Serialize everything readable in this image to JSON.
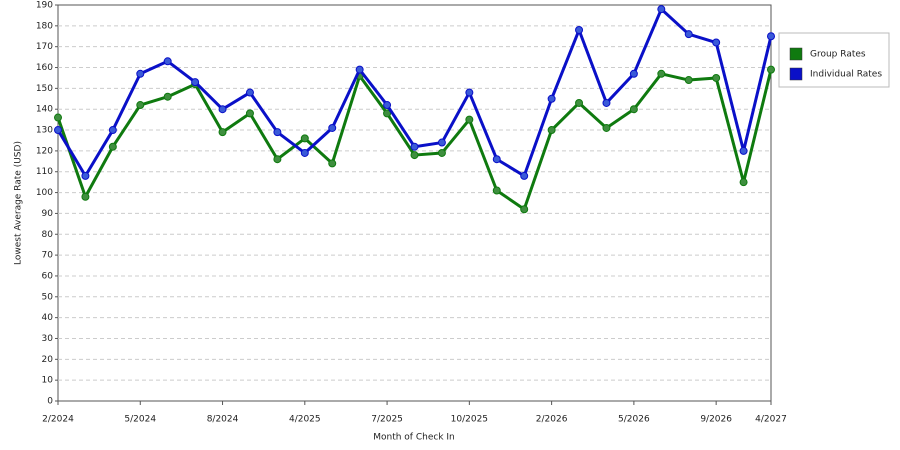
{
  "chart_data": {
    "type": "line",
    "x_label": "Month of Check In",
    "y_label": "Lowest Average Rate (USD)",
    "categories": [
      "2/2024",
      null,
      null,
      "5/2024",
      null,
      null,
      "8/2024",
      null,
      null,
      "4/2025",
      null,
      null,
      "7/2025",
      null,
      null,
      "10/2025",
      null,
      null,
      "2/2026",
      null,
      null,
      "5/2026",
      null,
      null,
      "9/2026",
      null,
      "4/2027"
    ],
    "series": [
      {
        "name": "Group Rates",
        "color": "#0f7a0f",
        "marker_color": "#3f8f3f",
        "values": [
          136,
          98,
          122,
          142,
          146,
          152,
          129,
          138,
          116,
          126,
          114,
          156,
          138,
          118,
          119,
          135,
          101,
          92,
          130,
          143,
          131,
          140,
          157,
          154,
          155,
          105,
          159
        ]
      },
      {
        "name": "Individual Rates",
        "color": "#0a10c8",
        "marker_color": "#3a5ad8",
        "values": [
          130,
          108,
          130,
          157,
          163,
          153,
          140,
          148,
          129,
          119,
          131,
          159,
          142,
          122,
          124,
          148,
          116,
          108,
          145,
          178,
          143,
          157,
          188,
          176,
          172,
          120,
          175
        ]
      }
    ],
    "ylim": [
      0,
      190
    ],
    "yticks": [
      0,
      10,
      20,
      30,
      40,
      50,
      60,
      70,
      80,
      90,
      100,
      110,
      120,
      130,
      140,
      150,
      160,
      170,
      180,
      190
    ],
    "grid": true,
    "legend": "right"
  }
}
